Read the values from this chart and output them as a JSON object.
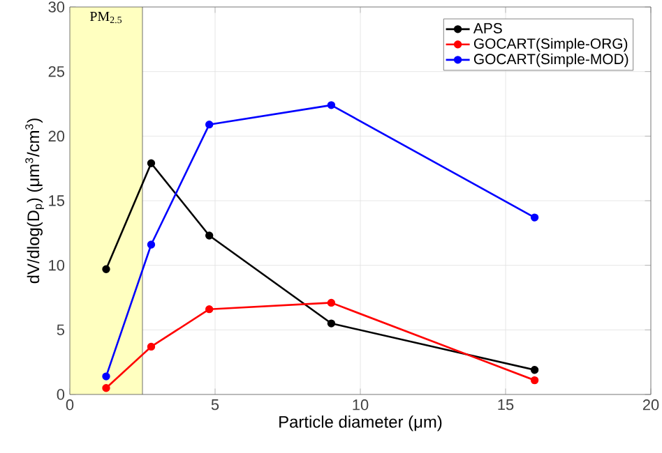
{
  "chart_data": {
    "type": "line",
    "xlabel": "Particle diameter (μm)",
    "ylabel": "dV/dlog(D$_{p}$) (μm$^{3}$/cm$^{3}$)",
    "x": [
      1.25,
      2.8,
      4.8,
      9,
      16
    ],
    "series": [
      {
        "name": "APS",
        "color": "#000000",
        "values": [
          9.7,
          17.9,
          12.3,
          5.5,
          1.9
        ]
      },
      {
        "name": "GOCART(Simple-ORG)",
        "color": "#ff0000",
        "values": [
          0.5,
          3.7,
          6.6,
          7.1,
          1.1
        ]
      },
      {
        "name": "GOCART(Simple-MOD)",
        "color": "#0000ff",
        "values": [
          1.4,
          11.6,
          20.9,
          22.4,
          13.7
        ]
      }
    ],
    "bands": [
      {
        "axis": "x",
        "from": 0,
        "to": 2.5,
        "label": "PM$_{2.5}$",
        "color": "#ffffc0"
      }
    ],
    "xlim": [
      0,
      20
    ],
    "xticks": [
      0,
      5,
      10,
      15,
      20
    ],
    "ylim": [
      0,
      30
    ],
    "yticks": [
      0,
      5,
      10,
      15,
      20,
      25,
      30
    ],
    "grid": true,
    "legend": "top right",
    "marker": "circle",
    "line_style": "solid"
  }
}
